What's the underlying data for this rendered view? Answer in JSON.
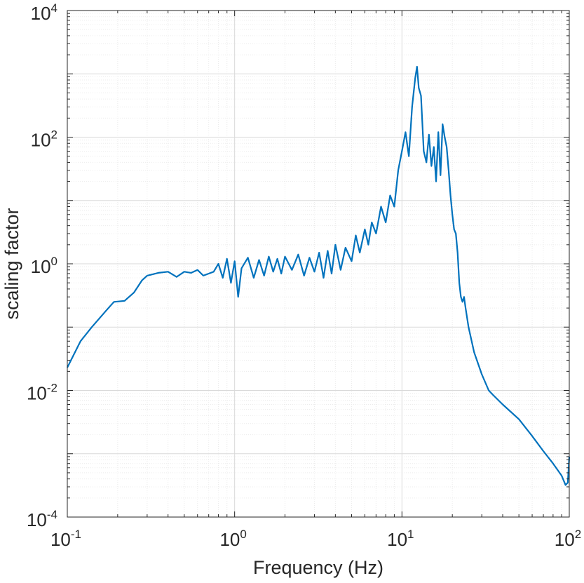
{
  "chart_data": {
    "type": "line",
    "xlabel": "Frequency (Hz)",
    "ylabel": "scaling factor",
    "xscale": "log",
    "yscale": "log",
    "xlim": [
      0.1,
      100
    ],
    "ylim": [
      0.0001,
      10000
    ],
    "grid": true,
    "minor_grid": true,
    "x_ticks": [
      {
        "base": "10",
        "exp": "-1"
      },
      {
        "base": "10",
        "exp": "0"
      },
      {
        "base": "10",
        "exp": "1"
      },
      {
        "base": "10",
        "exp": "2"
      }
    ],
    "y_ticks": [
      {
        "base": "10",
        "exp": "-4"
      },
      {
        "base": "10",
        "exp": "-2"
      },
      {
        "base": "10",
        "exp": "0"
      },
      {
        "base": "10",
        "exp": "2"
      },
      {
        "base": "10",
        "exp": "4"
      }
    ],
    "series": [
      {
        "color": "#0072BD",
        "x": [
          0.1,
          0.12,
          0.14,
          0.17,
          0.19,
          0.22,
          0.25,
          0.28,
          0.3,
          0.35,
          0.4,
          0.45,
          0.5,
          0.55,
          0.6,
          0.65,
          0.7,
          0.75,
          0.8,
          0.85,
          0.9,
          0.95,
          1.0,
          1.05,
          1.1,
          1.2,
          1.3,
          1.4,
          1.5,
          1.6,
          1.7,
          1.8,
          1.9,
          2.0,
          2.2,
          2.4,
          2.6,
          2.8,
          3.0,
          3.2,
          3.4,
          3.6,
          3.8,
          4.0,
          4.3,
          4.6,
          5.0,
          5.3,
          5.6,
          6.0,
          6.3,
          6.6,
          7.0,
          7.5,
          8.0,
          8.5,
          9.0,
          9.5,
          10.0,
          10.5,
          11.0,
          11.5,
          12.0,
          12.3,
          12.6,
          13.0,
          13.5,
          14.0,
          14.5,
          15.0,
          15.5,
          16.0,
          16.5,
          17.0,
          17.5,
          18.0,
          18.5,
          19.0,
          19.5,
          20.0,
          20.5,
          21.0,
          21.5,
          22.0,
          22.5,
          23.0,
          23.5,
          24.0,
          25.0,
          27.0,
          30.0,
          33.0,
          35.0,
          40.0,
          50.0,
          60.0,
          70.0,
          80.0,
          90.0,
          95.0,
          98.0,
          100.0
        ],
        "y": [
          0.023,
          0.06,
          0.1,
          0.18,
          0.25,
          0.26,
          0.35,
          0.55,
          0.65,
          0.72,
          0.75,
          0.62,
          0.75,
          0.72,
          0.8,
          0.65,
          0.7,
          0.75,
          1.0,
          0.6,
          1.2,
          0.5,
          1.1,
          0.3,
          0.85,
          1.25,
          0.6,
          1.15,
          0.65,
          1.3,
          0.75,
          1.2,
          0.7,
          1.3,
          0.8,
          1.4,
          0.65,
          1.25,
          0.75,
          1.5,
          0.6,
          1.6,
          0.7,
          2.0,
          0.8,
          1.8,
          1.1,
          2.8,
          1.5,
          3.5,
          2.0,
          4.5,
          3.0,
          8.0,
          4.5,
          12.0,
          8.0,
          30.0,
          60.0,
          120.0,
          50.0,
          300.0,
          850.0,
          1300.0,
          600.0,
          450.0,
          60.0,
          40.0,
          110.0,
          35.0,
          70.0,
          20.0,
          120.0,
          25.0,
          160.0,
          100.0,
          70.0,
          30.0,
          12.0,
          6.0,
          3.5,
          3.0,
          1.5,
          0.5,
          0.3,
          0.25,
          0.3,
          0.2,
          0.1,
          0.04,
          0.018,
          0.01,
          0.0085,
          0.006,
          0.0035,
          0.0019,
          0.0011,
          0.0007,
          0.00045,
          0.00032,
          0.00035,
          0.0009
        ]
      }
    ]
  }
}
